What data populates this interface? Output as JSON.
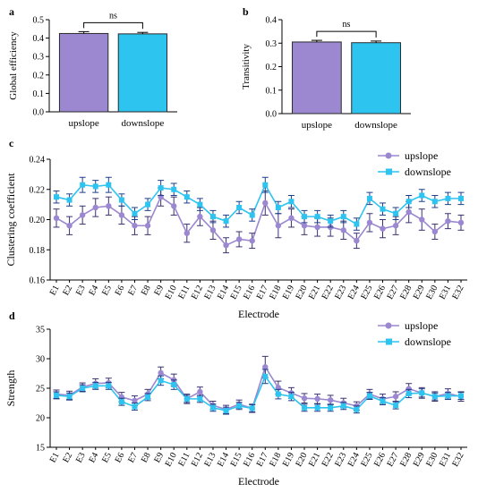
{
  "chart_data": [
    {
      "panel_label": "a",
      "type": "bar",
      "categories": [
        "upslope",
        "downslope"
      ],
      "values": [
        0.425,
        0.423
      ],
      "errors": [
        0.01,
        0.008
      ],
      "ylabel": "Global efficiency",
      "ylim": [
        0,
        0.5
      ],
      "yticks": [
        "0.0",
        "0.1",
        "0.2",
        "0.3",
        "0.4",
        "0.5"
      ],
      "significance": "ns",
      "colors": [
        "#9b88d0",
        "#2ec4f0"
      ]
    },
    {
      "panel_label": "b",
      "type": "bar",
      "categories": [
        "upslope",
        "downslope"
      ],
      "values": [
        0.305,
        0.302
      ],
      "errors": [
        0.007,
        0.007
      ],
      "ylabel": "Transitivity",
      "ylim": [
        0,
        0.4
      ],
      "yticks": [
        "0.0",
        "0.1",
        "0.2",
        "0.3",
        "0.4"
      ],
      "significance": "ns",
      "colors": [
        "#9b88d0",
        "#2ec4f0"
      ]
    },
    {
      "panel_label": "c",
      "type": "line",
      "xlabel": "Electrode",
      "ylabel": "Clustering coefficient",
      "ylim": [
        0.16,
        0.24
      ],
      "yticks": [
        "0.16",
        "0.18",
        "0.20",
        "0.22",
        "0.24"
      ],
      "categories": [
        "E1",
        "E2",
        "E3",
        "E4",
        "E5",
        "E6",
        "E7",
        "E8",
        "E9",
        "E10",
        "E11",
        "E12",
        "E13",
        "E14",
        "E15",
        "E16",
        "E17",
        "E18",
        "E19",
        "E20",
        "E21",
        "E22",
        "E23",
        "E24",
        "E25",
        "E26",
        "E27",
        "E28",
        "E29",
        "E30",
        "E31",
        "E32"
      ],
      "legend_position": "top-right",
      "series": [
        {
          "name": "upslope",
          "color": "#9b88d0",
          "marker": "circle",
          "values": [
            0.201,
            0.196,
            0.203,
            0.208,
            0.209,
            0.203,
            0.196,
            0.196,
            0.215,
            0.209,
            0.191,
            0.202,
            0.193,
            0.183,
            0.187,
            0.186,
            0.211,
            0.196,
            0.201,
            0.196,
            0.195,
            0.195,
            0.193,
            0.186,
            0.198,
            0.194,
            0.196,
            0.205,
            0.2,
            0.192,
            0.199,
            0.198
          ],
          "errors": [
            0.006,
            0.006,
            0.006,
            0.006,
            0.006,
            0.006,
            0.006,
            0.006,
            0.006,
            0.006,
            0.006,
            0.006,
            0.006,
            0.005,
            0.005,
            0.005,
            0.008,
            0.008,
            0.006,
            0.006,
            0.006,
            0.006,
            0.006,
            0.005,
            0.006,
            0.006,
            0.006,
            0.007,
            0.007,
            0.005,
            0.005,
            0.005
          ]
        },
        {
          "name": "downslope",
          "color": "#2ec4f0",
          "marker": "square",
          "values": [
            0.215,
            0.213,
            0.223,
            0.222,
            0.223,
            0.213,
            0.204,
            0.21,
            0.221,
            0.22,
            0.215,
            0.21,
            0.202,
            0.199,
            0.208,
            0.203,
            0.223,
            0.208,
            0.212,
            0.202,
            0.202,
            0.199,
            0.202,
            0.197,
            0.214,
            0.207,
            0.204,
            0.212,
            0.216,
            0.212,
            0.214,
            0.214
          ],
          "errors": [
            0.004,
            0.004,
            0.005,
            0.004,
            0.005,
            0.004,
            0.004,
            0.004,
            0.005,
            0.004,
            0.004,
            0.004,
            0.004,
            0.004,
            0.004,
            0.004,
            0.005,
            0.004,
            0.004,
            0.004,
            0.004,
            0.004,
            0.004,
            0.004,
            0.004,
            0.004,
            0.004,
            0.004,
            0.004,
            0.004,
            0.004,
            0.004
          ]
        }
      ]
    },
    {
      "panel_label": "d",
      "type": "line",
      "xlabel": "Electrode",
      "ylabel": "Strength",
      "ylim": [
        15,
        35
      ],
      "yticks": [
        "15",
        "20",
        "25",
        "30",
        "35"
      ],
      "categories": [
        "E1",
        "E2",
        "E3",
        "E4",
        "E5",
        "E6",
        "E7",
        "E8",
        "E9",
        "E10",
        "E11",
        "E12",
        "E13",
        "E14",
        "E15",
        "E16",
        "E17",
        "E18",
        "E19",
        "E20",
        "E21",
        "E22",
        "E23",
        "E24",
        "E25",
        "E26",
        "E27",
        "E28",
        "E29",
        "E30",
        "E31",
        "E32"
      ],
      "legend_position": "top-right",
      "series": [
        {
          "name": "upslope",
          "color": "#9b88d0",
          "marker": "circle",
          "values": [
            24.0,
            23.8,
            25.2,
            25.8,
            25.9,
            23.5,
            22.9,
            24.0,
            27.6,
            26.4,
            23.2,
            24.4,
            22.1,
            21.4,
            22.3,
            21.6,
            28.6,
            25.1,
            24.2,
            23.3,
            23.2,
            23.0,
            22.5,
            22.0,
            24.0,
            23.2,
            23.6,
            24.9,
            24.2,
            23.6,
            24.1,
            23.6
          ],
          "errors": [
            0.7,
            0.7,
            0.7,
            0.8,
            0.8,
            0.8,
            0.8,
            0.8,
            1.0,
            1.0,
            0.8,
            0.8,
            0.7,
            0.7,
            0.7,
            0.7,
            1.8,
            1.1,
            0.9,
            0.8,
            0.8,
            0.8,
            0.8,
            0.7,
            0.8,
            0.8,
            0.8,
            0.9,
            0.9,
            0.8,
            0.8,
            0.8
          ]
        },
        {
          "name": "downslope",
          "color": "#2ec4f0",
          "marker": "square",
          "values": [
            23.8,
            23.6,
            25.0,
            25.4,
            25.4,
            22.7,
            21.9,
            23.5,
            26.3,
            25.6,
            23.2,
            23.2,
            21.7,
            21.2,
            22.0,
            21.6,
            27.0,
            24.0,
            23.6,
            21.7,
            21.7,
            21.7,
            22.0,
            21.4,
            23.7,
            22.8,
            22.1,
            24.1,
            24.2,
            23.6,
            23.7,
            23.7
          ],
          "errors": [
            0.6,
            0.6,
            0.6,
            0.6,
            0.6,
            0.6,
            0.6,
            0.6,
            0.8,
            0.8,
            0.6,
            0.6,
            0.6,
            0.6,
            0.6,
            0.6,
            1.2,
            0.8,
            0.7,
            0.6,
            0.6,
            0.6,
            0.6,
            0.6,
            0.6,
            0.6,
            0.6,
            0.7,
            0.7,
            0.6,
            0.6,
            0.6
          ]
        }
      ]
    }
  ]
}
